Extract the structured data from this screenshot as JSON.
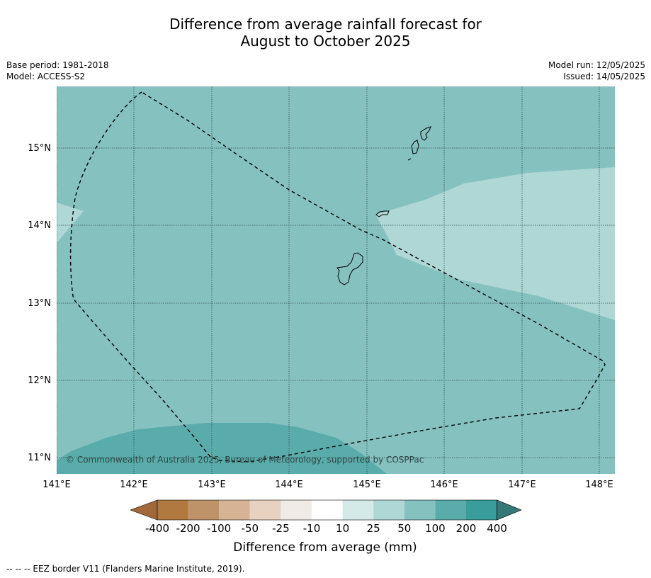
{
  "title": {
    "line1": "Difference from average rainfall forecast for",
    "line2": "August to October 2025"
  },
  "info_left": {
    "base_period": "Base period: 1981-2018",
    "model": "Model: ACCESS-S2"
  },
  "info_right": {
    "model_run": "Model run: 12/05/2025",
    "issued": "Issued: 14/05/2025"
  },
  "map": {
    "lon_labels": [
      "141°E",
      "142°E",
      "143°E",
      "144°E",
      "145°E",
      "146°E",
      "147°E",
      "148°E"
    ],
    "lat_labels": [
      "15°N",
      "14°N",
      "13°N",
      "12°N",
      "11°N"
    ],
    "copyright": "© Commonwealth of Australia 2025, Bureau of Meteorology, supported by COSPPac",
    "region_colors": {
      "background": "#85c1bf",
      "light_patch": "#aed7d6",
      "dark_patch": "#5aacab"
    }
  },
  "legend": {
    "tick_labels": [
      "-400",
      "-200",
      "-100",
      "-50",
      "-25",
      "-10",
      "10",
      "25",
      "50",
      "100",
      "200",
      "400"
    ],
    "colors": [
      "#a2683b",
      "#b07940",
      "#be9369",
      "#d5b394",
      "#e7d1c0",
      "#f0ebe7",
      "#ffffff",
      "#d4eae9",
      "#aed7d6",
      "#85c1bf",
      "#5aacab",
      "#389d9b",
      "#347877"
    ],
    "label": "Difference from average (mm)"
  },
  "footer": {
    "eez_note": "--  --  -- EEZ border V11 (Flanders Marine Institute, 2019)."
  }
}
